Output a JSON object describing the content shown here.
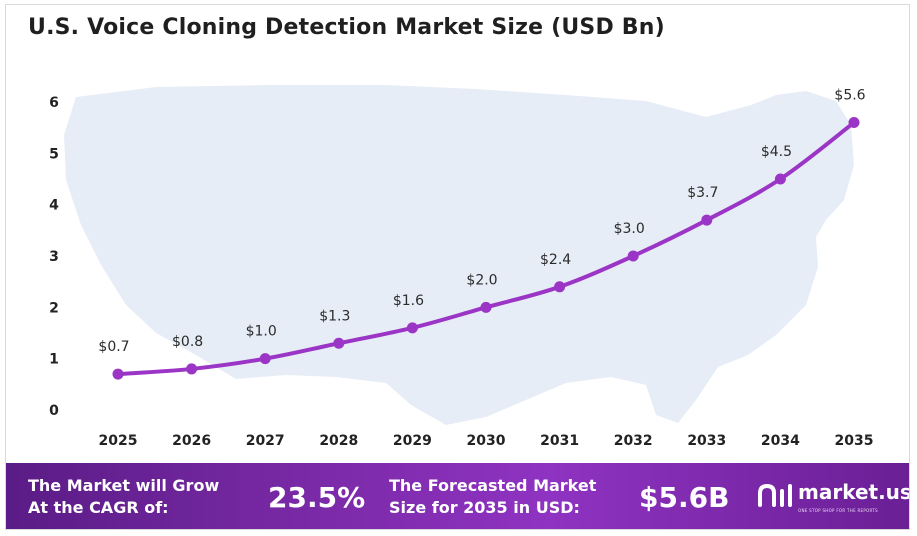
{
  "chart_data": {
    "type": "line",
    "title": "U.S. Voice Cloning Detection Market Size (USD Bn)",
    "x": [
      "2025",
      "2026",
      "2027",
      "2028",
      "2029",
      "2030",
      "2031",
      "2032",
      "2033",
      "2034",
      "2035"
    ],
    "series": [
      {
        "values": [
          0.7,
          0.8,
          1.0,
          1.3,
          1.6,
          2.0,
          2.4,
          3.0,
          3.7,
          4.5,
          5.6
        ]
      }
    ],
    "data_labels": [
      "$0.7",
      "$0.8",
      "$1.0",
      "$1.3",
      "$1.6",
      "$2.0",
      "$2.4",
      "$3.0",
      "$3.7",
      "$4.5",
      "$5.6"
    ],
    "yticks": [
      "0",
      "1",
      "2",
      "3",
      "4",
      "5",
      "6"
    ],
    "ylim": [
      0,
      6
    ],
    "grid": false,
    "colors": {
      "line": "#9b35c6",
      "marker": "#9b35c6",
      "label": "#2b2b2b",
      "map": "#e6ecf6"
    }
  },
  "footer": {
    "cagr_label_line1": "The Market will Grow",
    "cagr_label_line2": "At the CAGR of:",
    "cagr_value": "23.5%",
    "forecast_label_line1": "The Forecasted Market",
    "forecast_label_line2": "Size for 2035 in USD:",
    "forecast_value": "$5.6B",
    "brand": "market.us",
    "brand_tagline": "ONE STOP SHOP FOR THE REPORTS",
    "background": "#7b2aa8"
  }
}
